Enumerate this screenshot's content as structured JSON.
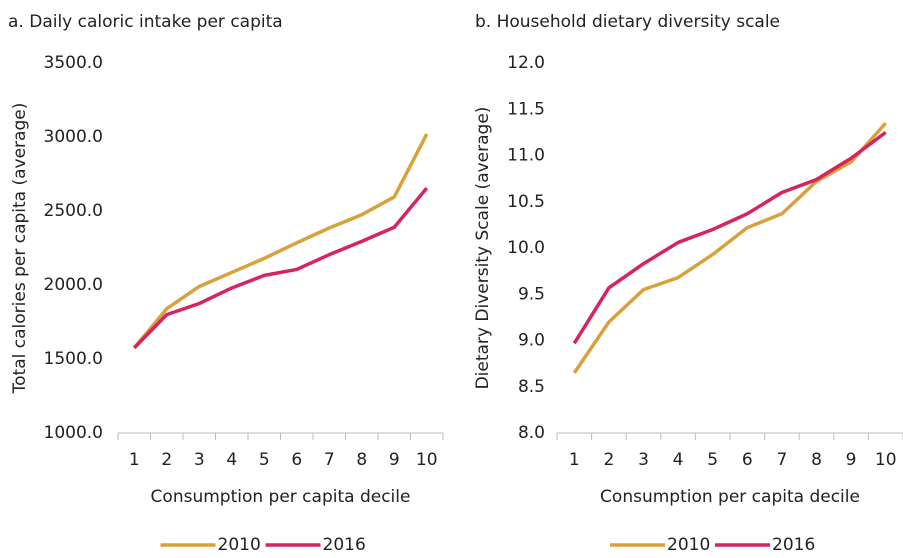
{
  "chart_data": [
    {
      "type": "line",
      "title": "a. Daily caloric intake per capita",
      "x_label": "Consumption per capita decile",
      "y_label": "Total calories per capita (average)",
      "categories": [
        "1",
        "2",
        "3",
        "4",
        "5",
        "6",
        "7",
        "8",
        "9",
        "10"
      ],
      "series": [
        {
          "name": "2010",
          "color": "#d9a13b",
          "values": [
            1575,
            1840,
            1990,
            2085,
            2180,
            2285,
            2385,
            2475,
            2595,
            3020
          ]
        },
        {
          "name": "2016",
          "color": "#d6245f",
          "values": [
            1575,
            1800,
            1875,
            1980,
            2065,
            2105,
            2205,
            2295,
            2390,
            2655
          ]
        }
      ],
      "ylim": [
        1000,
        3500
      ],
      "yticks": [
        {
          "value": 1000,
          "label": "1000.0"
        },
        {
          "value": 1500,
          "label": "1500.0"
        },
        {
          "value": 2000,
          "label": "2000.0"
        },
        {
          "value": 2500,
          "label": "2500.0"
        },
        {
          "value": 3000,
          "label": "3000.0"
        },
        {
          "value": 3500,
          "label": "3500.0"
        }
      ],
      "legend": "bottom"
    },
    {
      "type": "line",
      "title": "b. Household dietary diversity scale",
      "x_label": "Consumption per capita decile",
      "y_label": "Dietary Diversity Scale (average)",
      "categories": [
        "1",
        "2",
        "3",
        "4",
        "5",
        "6",
        "7",
        "8",
        "9",
        "10"
      ],
      "series": [
        {
          "name": "2010",
          "color": "#d9a13b",
          "values": [
            8.65,
            9.2,
            9.55,
            9.68,
            9.93,
            10.22,
            10.37,
            10.72,
            10.93,
            11.35
          ]
        },
        {
          "name": "2016",
          "color": "#d6245f",
          "values": [
            8.97,
            9.57,
            9.83,
            10.06,
            10.2,
            10.37,
            10.6,
            10.74,
            10.97,
            11.25
          ]
        }
      ],
      "ylim": [
        8,
        12
      ],
      "yticks": [
        {
          "value": 8,
          "label": "8.0"
        },
        {
          "value": 8.5,
          "label": "8.5"
        },
        {
          "value": 9,
          "label": "9.0"
        },
        {
          "value": 9.5,
          "label": "9.5"
        },
        {
          "value": 10,
          "label": "10.0"
        },
        {
          "value": 10.5,
          "label": "10.5"
        },
        {
          "value": 11,
          "label": "11.0"
        },
        {
          "value": 11.5,
          "label": "11.5"
        },
        {
          "value": 12,
          "label": "12.0"
        }
      ],
      "legend": "bottom"
    }
  ]
}
